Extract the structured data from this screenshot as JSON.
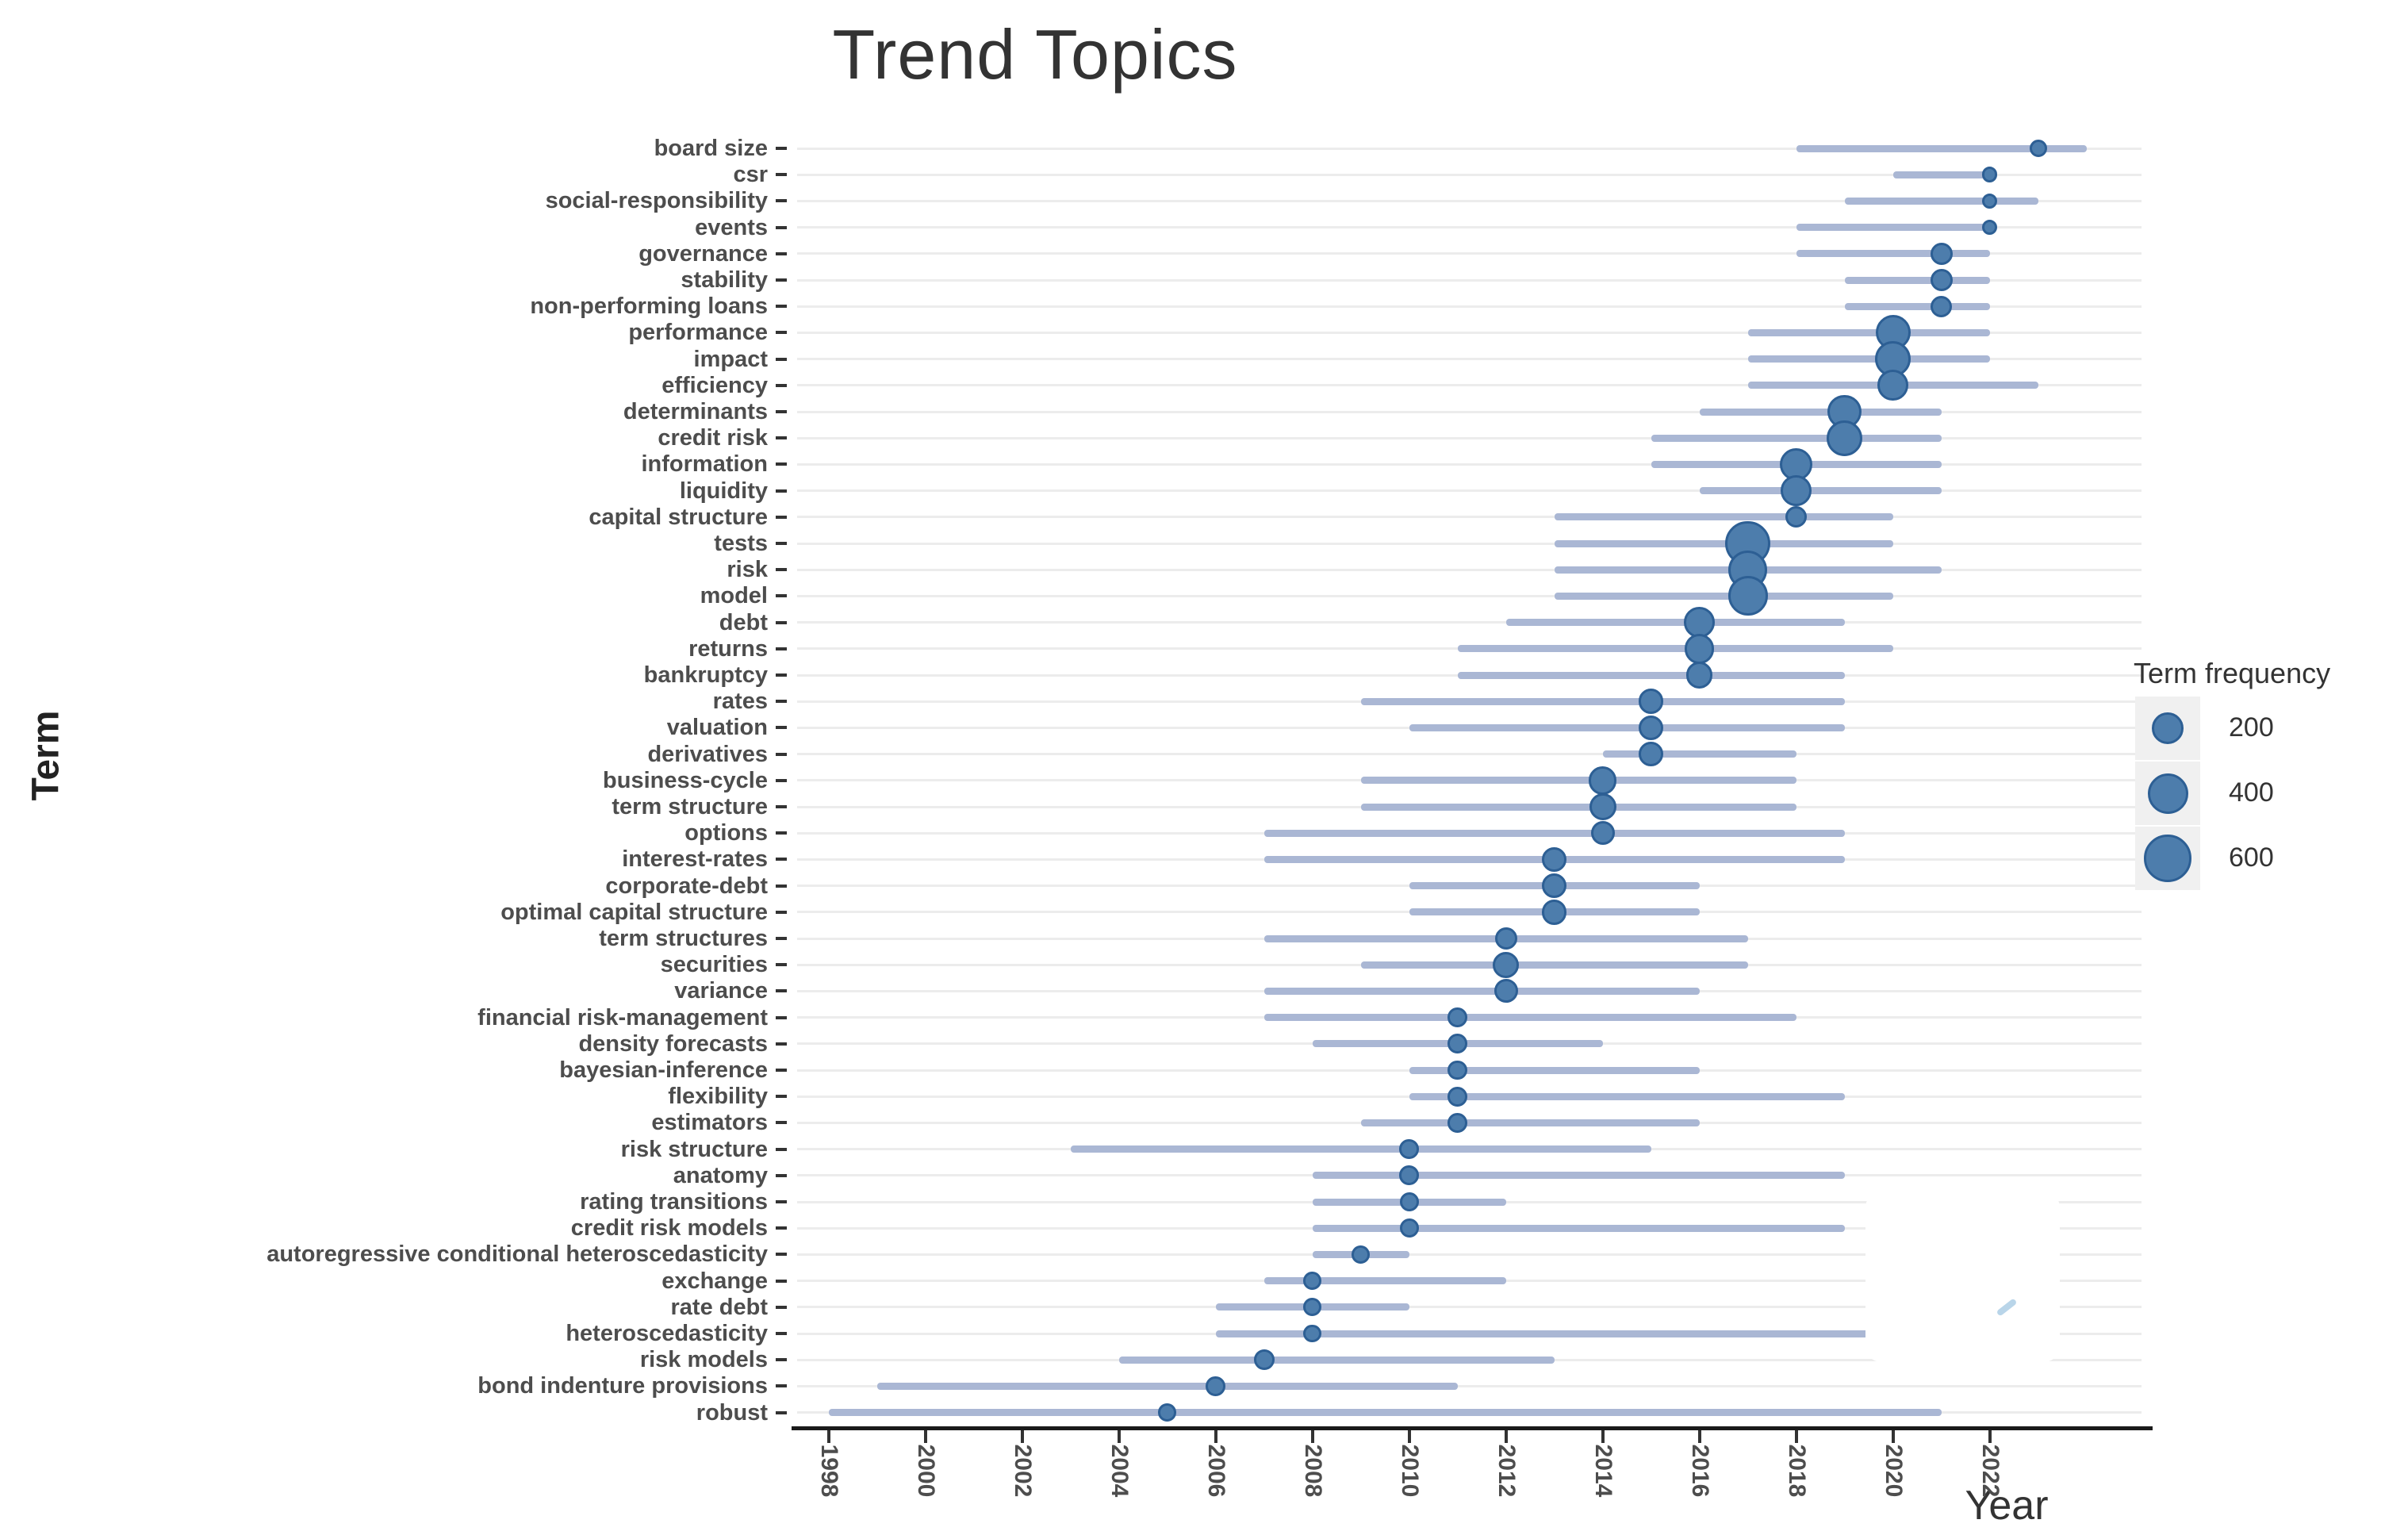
{
  "title": "Trend Topics",
  "x_axis": {
    "label": "Year",
    "ticks": [
      1998,
      2000,
      2002,
      2004,
      2006,
      2008,
      2010,
      2012,
      2014,
      2016,
      2018,
      2020,
      2022
    ]
  },
  "y_axis": {
    "label": "Term"
  },
  "legend": {
    "title": "Term frequency",
    "sizes": [
      200,
      400,
      600
    ]
  },
  "colors": {
    "dot_fill": "#4d7dac",
    "dot_border": "#2d5f94",
    "range_line": "#aab7d4",
    "gridline": "#ececec",
    "axis_text": "#4d4d4d",
    "title_text": "#333333"
  },
  "chart_data": {
    "type": "scatter",
    "description": "Trend topics: per term a dot at median publication year (size = term frequency) and a line from first-quartile year to third-quartile year",
    "xlabel": "Year",
    "ylabel": "Term",
    "xlim": [
      1997,
      2025
    ],
    "legend_position": "right",
    "grid": "horizontal",
    "terms": [
      {
        "term": "board size",
        "freq": 40,
        "year_q1": 2018,
        "year_median": 2023,
        "year_q3": 2024
      },
      {
        "term": "csr",
        "freq": 25,
        "year_q1": 2020,
        "year_median": 2022,
        "year_q3": 2022
      },
      {
        "term": "social-responsibility",
        "freq": 25,
        "year_q1": 2019,
        "year_median": 2022,
        "year_q3": 2023
      },
      {
        "term": "events",
        "freq": 25,
        "year_q1": 2018,
        "year_median": 2022,
        "year_q3": 2022
      },
      {
        "term": "governance",
        "freq": 90,
        "year_q1": 2018,
        "year_median": 2021,
        "year_q3": 2022
      },
      {
        "term": "stability",
        "freq": 90,
        "year_q1": 2019,
        "year_median": 2021,
        "year_q3": 2022
      },
      {
        "term": "non-performing loans",
        "freq": 80,
        "year_q1": 2019,
        "year_median": 2021,
        "year_q3": 2022
      },
      {
        "term": "performance",
        "freq": 320,
        "year_q1": 2017,
        "year_median": 2020,
        "year_q3": 2022
      },
      {
        "term": "impact",
        "freq": 340,
        "year_q1": 2017,
        "year_median": 2020,
        "year_q3": 2022
      },
      {
        "term": "efficiency",
        "freq": 230,
        "year_q1": 2017,
        "year_median": 2020,
        "year_q3": 2023
      },
      {
        "term": "determinants",
        "freq": 300,
        "year_q1": 2016,
        "year_median": 2019,
        "year_q3": 2021
      },
      {
        "term": "credit risk",
        "freq": 340,
        "year_q1": 2015,
        "year_median": 2019,
        "year_q3": 2021
      },
      {
        "term": "information",
        "freq": 280,
        "year_q1": 2015,
        "year_median": 2018,
        "year_q3": 2021
      },
      {
        "term": "liquidity",
        "freq": 230,
        "year_q1": 2016,
        "year_median": 2018,
        "year_q3": 2021
      },
      {
        "term": "capital structure",
        "freq": 80,
        "year_q1": 2013,
        "year_median": 2018,
        "year_q3": 2020
      },
      {
        "term": "tests",
        "freq": 600,
        "year_q1": 2013,
        "year_median": 2017,
        "year_q3": 2020
      },
      {
        "term": "risk",
        "freq": 430,
        "year_q1": 2013,
        "year_median": 2017,
        "year_q3": 2021
      },
      {
        "term": "model",
        "freq": 440,
        "year_q1": 2013,
        "year_median": 2017,
        "year_q3": 2020
      },
      {
        "term": "debt",
        "freq": 230,
        "year_q1": 2012,
        "year_median": 2016,
        "year_q3": 2019
      },
      {
        "term": "returns",
        "freq": 210,
        "year_q1": 2011,
        "year_median": 2016,
        "year_q3": 2020
      },
      {
        "term": "bankruptcy",
        "freq": 150,
        "year_q1": 2011,
        "year_median": 2016,
        "year_q3": 2019
      },
      {
        "term": "rates",
        "freq": 130,
        "year_q1": 2009,
        "year_median": 2015,
        "year_q3": 2019
      },
      {
        "term": "valuation",
        "freq": 130,
        "year_q1": 2010,
        "year_median": 2015,
        "year_q3": 2019
      },
      {
        "term": "derivatives",
        "freq": 120,
        "year_q1": 2014,
        "year_median": 2015,
        "year_q3": 2018
      },
      {
        "term": "business-cycle",
        "freq": 180,
        "year_q1": 2009,
        "year_median": 2014,
        "year_q3": 2018
      },
      {
        "term": "term structure",
        "freq": 160,
        "year_q1": 2009,
        "year_median": 2014,
        "year_q3": 2018
      },
      {
        "term": "options",
        "freq": 110,
        "year_q1": 2007,
        "year_median": 2014,
        "year_q3": 2019
      },
      {
        "term": "interest-rates",
        "freq": 120,
        "year_q1": 2007,
        "year_median": 2013,
        "year_q3": 2019
      },
      {
        "term": "corporate-debt",
        "freq": 130,
        "year_q1": 2010,
        "year_median": 2013,
        "year_q3": 2016
      },
      {
        "term": "optimal capital structure",
        "freq": 130,
        "year_q1": 2010,
        "year_median": 2013,
        "year_q3": 2016
      },
      {
        "term": "term structures",
        "freq": 90,
        "year_q1": 2007,
        "year_median": 2012,
        "year_q3": 2017
      },
      {
        "term": "securities",
        "freq": 150,
        "year_q1": 2009,
        "year_median": 2012,
        "year_q3": 2017
      },
      {
        "term": "variance",
        "freq": 110,
        "year_q1": 2007,
        "year_median": 2012,
        "year_q3": 2016
      },
      {
        "term": "financial risk-management",
        "freq": 60,
        "year_q1": 2007,
        "year_median": 2011,
        "year_q3": 2018
      },
      {
        "term": "density forecasts",
        "freq": 60,
        "year_q1": 2008,
        "year_median": 2011,
        "year_q3": 2014
      },
      {
        "term": "bayesian-inference",
        "freq": 60,
        "year_q1": 2010,
        "year_median": 2011,
        "year_q3": 2016
      },
      {
        "term": "flexibility",
        "freq": 60,
        "year_q1": 2010,
        "year_median": 2011,
        "year_q3": 2019
      },
      {
        "term": "estimators",
        "freq": 60,
        "year_q1": 2009,
        "year_median": 2011,
        "year_q3": 2016
      },
      {
        "term": "risk structure",
        "freq": 60,
        "year_q1": 2003,
        "year_median": 2010,
        "year_q3": 2015
      },
      {
        "term": "anatomy",
        "freq": 60,
        "year_q1": 2008,
        "year_median": 2010,
        "year_q3": 2019
      },
      {
        "term": "rating transitions",
        "freq": 55,
        "year_q1": 2008,
        "year_median": 2010,
        "year_q3": 2012
      },
      {
        "term": "credit risk models",
        "freq": 55,
        "year_q1": 2008,
        "year_median": 2010,
        "year_q3": 2019
      },
      {
        "term": "autoregressive conditional heteroscedasticity",
        "freq": 45,
        "year_q1": 2008,
        "year_median": 2009,
        "year_q3": 2010
      },
      {
        "term": "exchange",
        "freq": 45,
        "year_q1": 2007,
        "year_median": 2008,
        "year_q3": 2012
      },
      {
        "term": "rate debt",
        "freq": 45,
        "year_q1": 2006,
        "year_median": 2008,
        "year_q3": 2010
      },
      {
        "term": "heteroscedasticity",
        "freq": 45,
        "year_q1": 2006,
        "year_median": 2008,
        "year_q3": 2020
      },
      {
        "term": "risk models",
        "freq": 70,
        "year_q1": 2004,
        "year_median": 2007,
        "year_q3": 2013
      },
      {
        "term": "bond indenture provisions",
        "freq": 60,
        "year_q1": 1999,
        "year_median": 2006,
        "year_q3": 2011
      },
      {
        "term": "robust",
        "freq": 45,
        "year_q1": 1998,
        "year_median": 2005,
        "year_q3": 2021
      }
    ]
  }
}
